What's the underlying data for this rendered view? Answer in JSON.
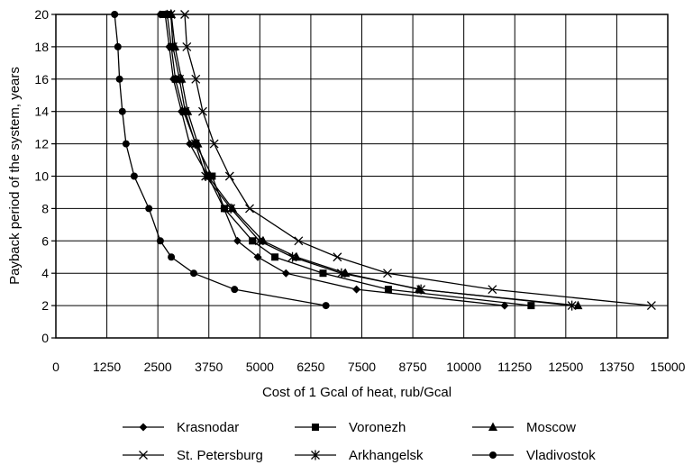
{
  "chart_data": {
    "type": "line",
    "title": "",
    "xlabel": "Cost of 1 Gcal of heat, rub/Gcal",
    "ylabel": "Payback period of the system, years",
    "xlim": [
      0,
      15000
    ],
    "ylim": [
      0,
      20
    ],
    "x_ticks": [
      0,
      1250,
      2500,
      3750,
      5000,
      6250,
      7500,
      8750,
      10000,
      11250,
      12500,
      13750,
      15000
    ],
    "x_tick_labels": [
      "0",
      "1250",
      "2500",
      "3750",
      "5000",
      "6250",
      "7500",
      "8750",
      "10000",
      "11250",
      "12500",
      "13750",
      "15000"
    ],
    "y_ticks": [
      0,
      2,
      4,
      6,
      8,
      10,
      12,
      14,
      16,
      18,
      20
    ],
    "y_tick_labels": [
      "0",
      "2",
      "4",
      "6",
      "8",
      "10",
      "12",
      "14",
      "16",
      "18",
      "20"
    ],
    "grid": true,
    "legend_position": "bottom",
    "series": [
      {
        "name": "Krasnodar",
        "marker": "diamond",
        "color": "#000000",
        "x": [
          11000,
          7370,
          5640,
          4950,
          4450,
          4120,
          3730,
          3280,
          3080,
          2880,
          2780,
          2680,
          2560
        ],
        "y": [
          2,
          3,
          4,
          5,
          6,
          8,
          10,
          12,
          14,
          16,
          18,
          20,
          20
        ]
      },
      {
        "name": "Voronezh",
        "marker": "square",
        "color": "#000000",
        "x": [
          11650,
          8150,
          6550,
          5370,
          4820,
          4130,
          3830,
          3430,
          3130,
          2930,
          2830,
          2730,
          2620
        ],
        "y": [
          2,
          3,
          4,
          5,
          6,
          8,
          10,
          12,
          14,
          16,
          18,
          20,
          20
        ]
      },
      {
        "name": "Moscow",
        "marker": "triangle",
        "color": "#000000",
        "x": [
          12800,
          8900,
          7100,
          5900,
          5080,
          4330,
          3730,
          3480,
          3230,
          3080,
          2920,
          2830,
          2720
        ],
        "y": [
          2,
          3,
          4,
          5,
          6,
          8,
          10,
          12,
          14,
          16,
          18,
          20,
          20
        ]
      },
      {
        "name": "St. Petersburg",
        "marker": "x",
        "color": "#000000",
        "x": [
          14600,
          10700,
          8130,
          6900,
          5950,
          4750,
          4260,
          3880,
          3600,
          3430,
          3210,
          3160
        ],
        "y": [
          2,
          3,
          4,
          5,
          6,
          8,
          10,
          12,
          14,
          16,
          18,
          20
        ]
      },
      {
        "name": "Arkhangelsk",
        "marker": "asterisk",
        "color": "#000000",
        "x": [
          12650,
          8950,
          7000,
          5800,
          4990,
          4290,
          3670,
          3420,
          3170,
          3030,
          2870,
          2820
        ],
        "y": [
          2,
          3,
          4,
          5,
          6,
          8,
          10,
          12,
          14,
          16,
          18,
          20
        ]
      },
      {
        "name": "Vladivostok",
        "marker": "circle",
        "color": "#000000",
        "x": [
          6620,
          4380,
          3380,
          2830,
          2560,
          2280,
          1920,
          1720,
          1630,
          1560,
          1520,
          1440
        ],
        "y": [
          2,
          3,
          4,
          5,
          6,
          8,
          10,
          12,
          14,
          16,
          18,
          20
        ]
      }
    ]
  }
}
